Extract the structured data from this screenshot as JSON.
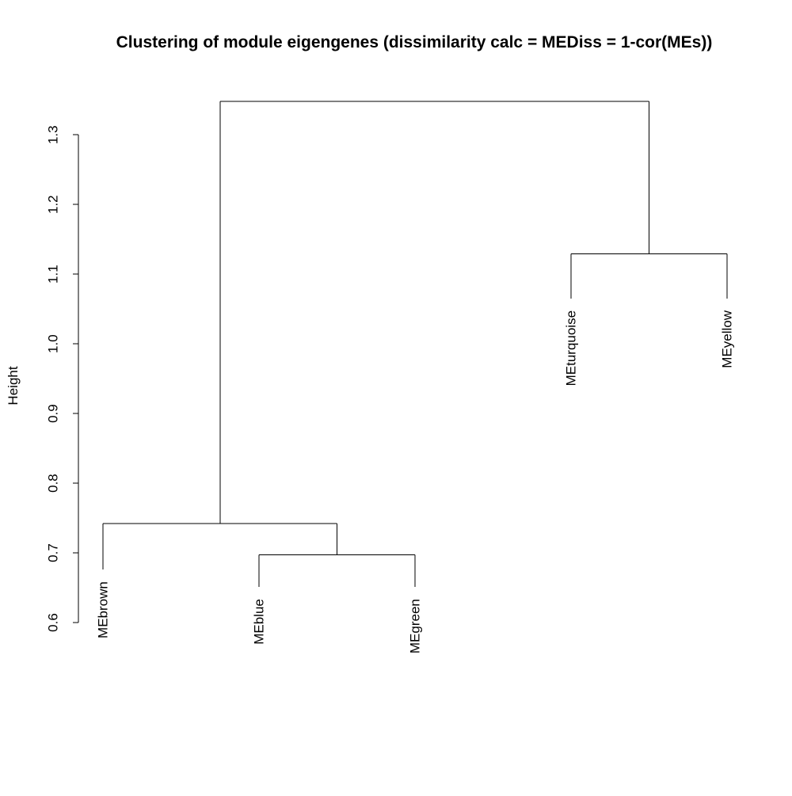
{
  "chart_data": {
    "type": "dendrogram",
    "title": "Clustering of module eigengenes (dissimilarity calc = MEDiss = 1-cor(MEs))",
    "ylabel": "Height",
    "xlabel": "",
    "ylim": [
      0.6,
      1.35
    ],
    "y_ticks": [
      "0.6",
      "0.7",
      "0.8",
      "0.9",
      "1.0",
      "1.1",
      "1.2",
      "1.3"
    ],
    "leaves": [
      {
        "id": "brown",
        "label": "MEbrown",
        "order": 1,
        "height": 0.676
      },
      {
        "id": "blue",
        "label": "MEblue",
        "order": 2,
        "height": 0.651
      },
      {
        "id": "green",
        "label": "MEgreen",
        "order": 3,
        "height": 0.651
      },
      {
        "id": "turquoise",
        "label": "MEturquoise",
        "order": 4,
        "height": 1.065
      },
      {
        "id": "yellow",
        "label": "MEyellow",
        "order": 5,
        "height": 1.065
      }
    ],
    "merges": [
      {
        "id": "m1",
        "left": "blue",
        "right": "green",
        "height": 0.697
      },
      {
        "id": "m2",
        "left": "brown",
        "right": "m1",
        "height": 0.742
      },
      {
        "id": "m3",
        "left": "turquoise",
        "right": "yellow",
        "height": 1.129
      },
      {
        "id": "m4",
        "left": "m2",
        "right": "m3",
        "height": 1.348
      }
    ],
    "grid": false,
    "legend": "none"
  }
}
